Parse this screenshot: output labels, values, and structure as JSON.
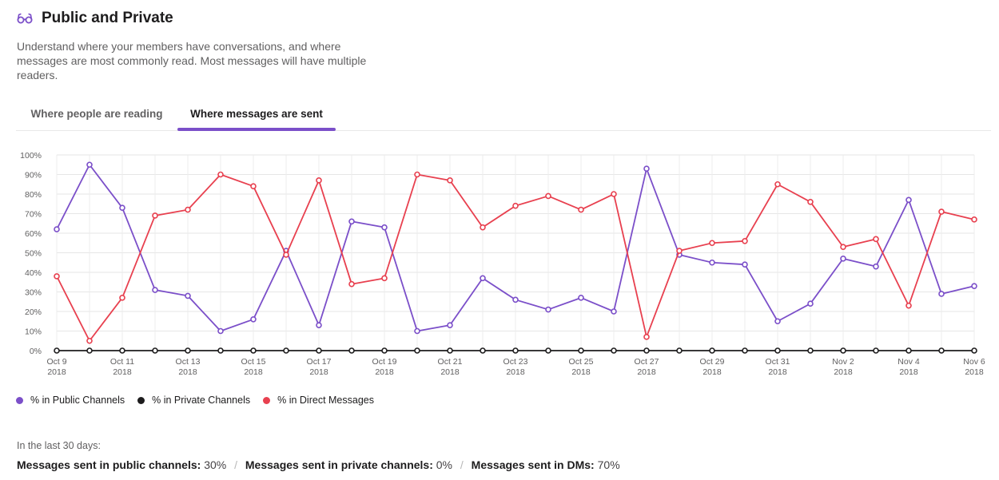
{
  "header": {
    "icon": "glasses-icon",
    "title": "Public and Private"
  },
  "description": "Understand where your members have conversations, and where messages are most commonly read. Most messages will have multiple readers.",
  "tabs": [
    {
      "label": "Where people are reading",
      "active": false
    },
    {
      "label": "Where messages are sent",
      "active": true
    }
  ],
  "colors": {
    "public": "#7b4fc9",
    "private": "#1d1c1d",
    "dm": "#e8404f",
    "accent": "#7b4fc9"
  },
  "legend": [
    {
      "label": "% in Public Channels",
      "color": "#7b4fc9"
    },
    {
      "label": "% in Private Channels",
      "color": "#1d1c1d"
    },
    {
      "label": "% in Direct Messages",
      "color": "#e8404f"
    }
  ],
  "summary": {
    "label": "In the last 30 days:",
    "items": [
      {
        "label": "Messages sent in public channels:",
        "value": "30%"
      },
      {
        "label": "Messages sent in private channels:",
        "value": "0%"
      },
      {
        "label": "Messages sent in DMs:",
        "value": "70%"
      }
    ]
  },
  "chart_data": {
    "type": "line",
    "ylim": [
      0,
      100
    ],
    "yticks": [
      "0%",
      "10%",
      "20%",
      "30%",
      "40%",
      "50%",
      "60%",
      "70%",
      "80%",
      "90%",
      "100%"
    ],
    "grid": true,
    "x": [
      "Oct 9 2018",
      "Oct 10 2018",
      "Oct 11 2018",
      "Oct 12 2018",
      "Oct 13 2018",
      "Oct 14 2018",
      "Oct 15 2018",
      "Oct 16 2018",
      "Oct 17 2018",
      "Oct 18 2018",
      "Oct 19 2018",
      "Oct 20 2018",
      "Oct 21 2018",
      "Oct 22 2018",
      "Oct 23 2018",
      "Oct 24 2018",
      "Oct 25 2018",
      "Oct 26 2018",
      "Oct 27 2018",
      "Oct 28 2018",
      "Oct 29 2018",
      "Oct 30 2018",
      "Oct 31 2018",
      "Nov 1 2018",
      "Nov 2 2018",
      "Nov 3 2018",
      "Nov 4 2018",
      "Nov 5 2018",
      "Nov 6 2018"
    ],
    "xtick_labels": [
      {
        "line1": "Oct 9",
        "line2": "2018"
      },
      {
        "line1": "Oct 11",
        "line2": "2018"
      },
      {
        "line1": "Oct 13",
        "line2": "2018"
      },
      {
        "line1": "Oct 15",
        "line2": "2018"
      },
      {
        "line1": "Oct 17",
        "line2": "2018"
      },
      {
        "line1": "Oct 19",
        "line2": "2018"
      },
      {
        "line1": "Oct 21",
        "line2": "2018"
      },
      {
        "line1": "Oct 23",
        "line2": "2018"
      },
      {
        "line1": "Oct 25",
        "line2": "2018"
      },
      {
        "line1": "Oct 27",
        "line2": "2018"
      },
      {
        "line1": "Oct 29",
        "line2": "2018"
      },
      {
        "line1": "Oct 31",
        "line2": "2018"
      },
      {
        "line1": "Nov 2",
        "line2": "2018"
      },
      {
        "line1": "Nov 4",
        "line2": "2018"
      },
      {
        "line1": "Nov 6",
        "line2": "2018"
      }
    ],
    "series": [
      {
        "name": "% in Public Channels",
        "color": "#7b4fc9",
        "values": [
          62,
          95,
          73,
          31,
          28,
          10,
          16,
          51,
          13,
          66,
          63,
          10,
          13,
          37,
          26,
          21,
          27,
          20,
          93,
          49,
          45,
          44,
          15,
          24,
          47,
          43,
          77,
          29,
          33
        ]
      },
      {
        "name": "% in Private Channels",
        "color": "#1d1c1d",
        "values": [
          0,
          0,
          0,
          0,
          0,
          0,
          0,
          0,
          0,
          0,
          0,
          0,
          0,
          0,
          0,
          0,
          0,
          0,
          0,
          0,
          0,
          0,
          0,
          0,
          0,
          0,
          0,
          0,
          0
        ]
      },
      {
        "name": "% in Direct Messages",
        "color": "#e8404f",
        "values": [
          38,
          5,
          27,
          69,
          72,
          90,
          84,
          49,
          87,
          34,
          37,
          90,
          87,
          63,
          74,
          79,
          72,
          80,
          7,
          51,
          55,
          56,
          85,
          76,
          53,
          57,
          23,
          71,
          67
        ]
      }
    ]
  }
}
